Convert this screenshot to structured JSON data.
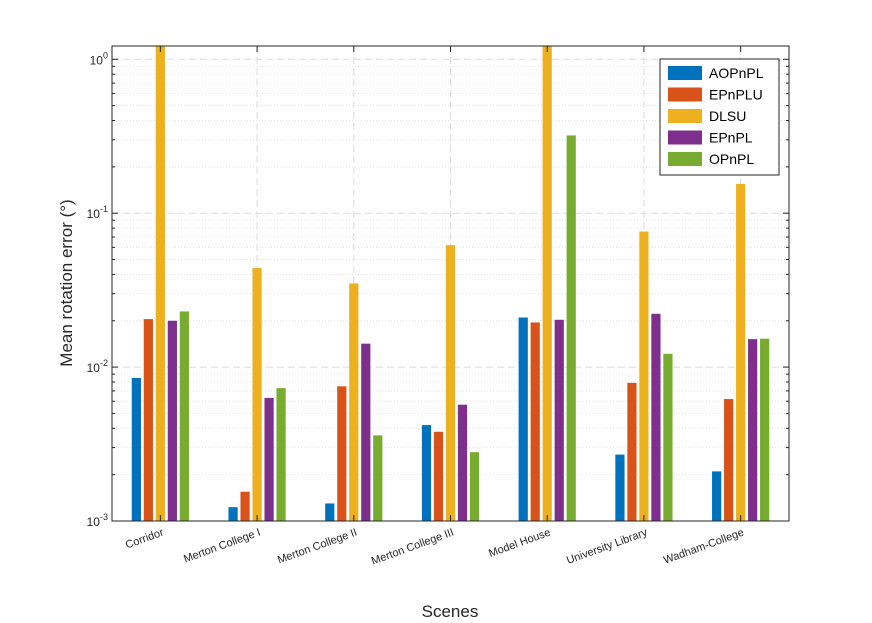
{
  "chart_data": {
    "type": "bar",
    "title": "",
    "xlabel": "Scenes",
    "ylabel": "Mean rotation error (°)",
    "yscale": "log",
    "ylim": [
      0.001,
      1.22
    ],
    "yticks": [
      {
        "value": 0.001,
        "base": "10",
        "exp": "-3"
      },
      {
        "value": 0.01,
        "base": "10",
        "exp": "-2"
      },
      {
        "value": 0.1,
        "base": "10",
        "exp": "-1"
      },
      {
        "value": 1,
        "base": "10",
        "exp": "0"
      }
    ],
    "grid": true,
    "legend_position": "top-right",
    "categories": [
      "Corridor",
      "Merton College I",
      "Merton College II",
      "Merton College III",
      "Model House",
      "University Library",
      "Wadham-College"
    ],
    "series": [
      {
        "name": "AOPnPL",
        "color": "#0072BD",
        "values": [
          0.0085,
          0.00123,
          0.0013,
          0.0042,
          0.021,
          0.0027,
          0.0021
        ]
      },
      {
        "name": "EPnPLU",
        "color": "#D95319",
        "values": [
          0.0205,
          0.00155,
          0.0075,
          0.0038,
          0.0195,
          0.0079,
          0.0062
        ]
      },
      {
        "name": "DLSU",
        "color": "#EDB120",
        "values": [
          1.3,
          0.044,
          0.035,
          0.062,
          1.3,
          0.076,
          0.155
        ]
      },
      {
        "name": "EPnPL",
        "color": "#7E2F8E",
        "values": [
          0.02,
          0.0063,
          0.0142,
          0.0057,
          0.0203,
          0.0222,
          0.0152
        ]
      },
      {
        "name": "OPnPL",
        "color": "#77AC30",
        "values": [
          0.023,
          0.0073,
          0.0036,
          0.0028,
          0.32,
          0.0122,
          0.0153
        ]
      }
    ]
  }
}
